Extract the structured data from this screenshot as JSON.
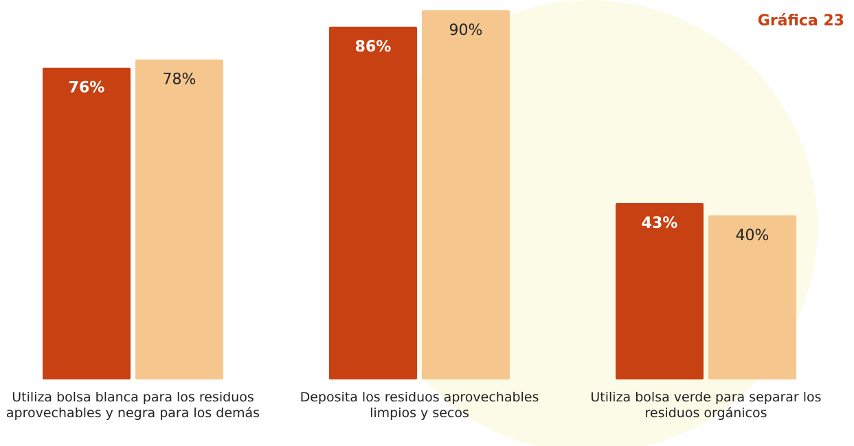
{
  "chart_data": {
    "type": "bar",
    "title": "Gráfica 23",
    "categories": [
      "Utiliza bolsa blanca para los residuos aprovechables y negra para los demás",
      "Deposita los residuos aprovechables limpios y secos",
      "Utiliza bolsa verde para separar los residuos orgánicos"
    ],
    "series": [
      {
        "color": "#c84113",
        "values": [
          76,
          86,
          43
        ],
        "value_labels": [
          "76%",
          "86%",
          "43%"
        ]
      },
      {
        "color": "#f5c78e",
        "values": [
          78,
          90,
          40
        ],
        "value_labels": [
          "78%",
          "90%",
          "40%"
        ]
      }
    ]
  }
}
